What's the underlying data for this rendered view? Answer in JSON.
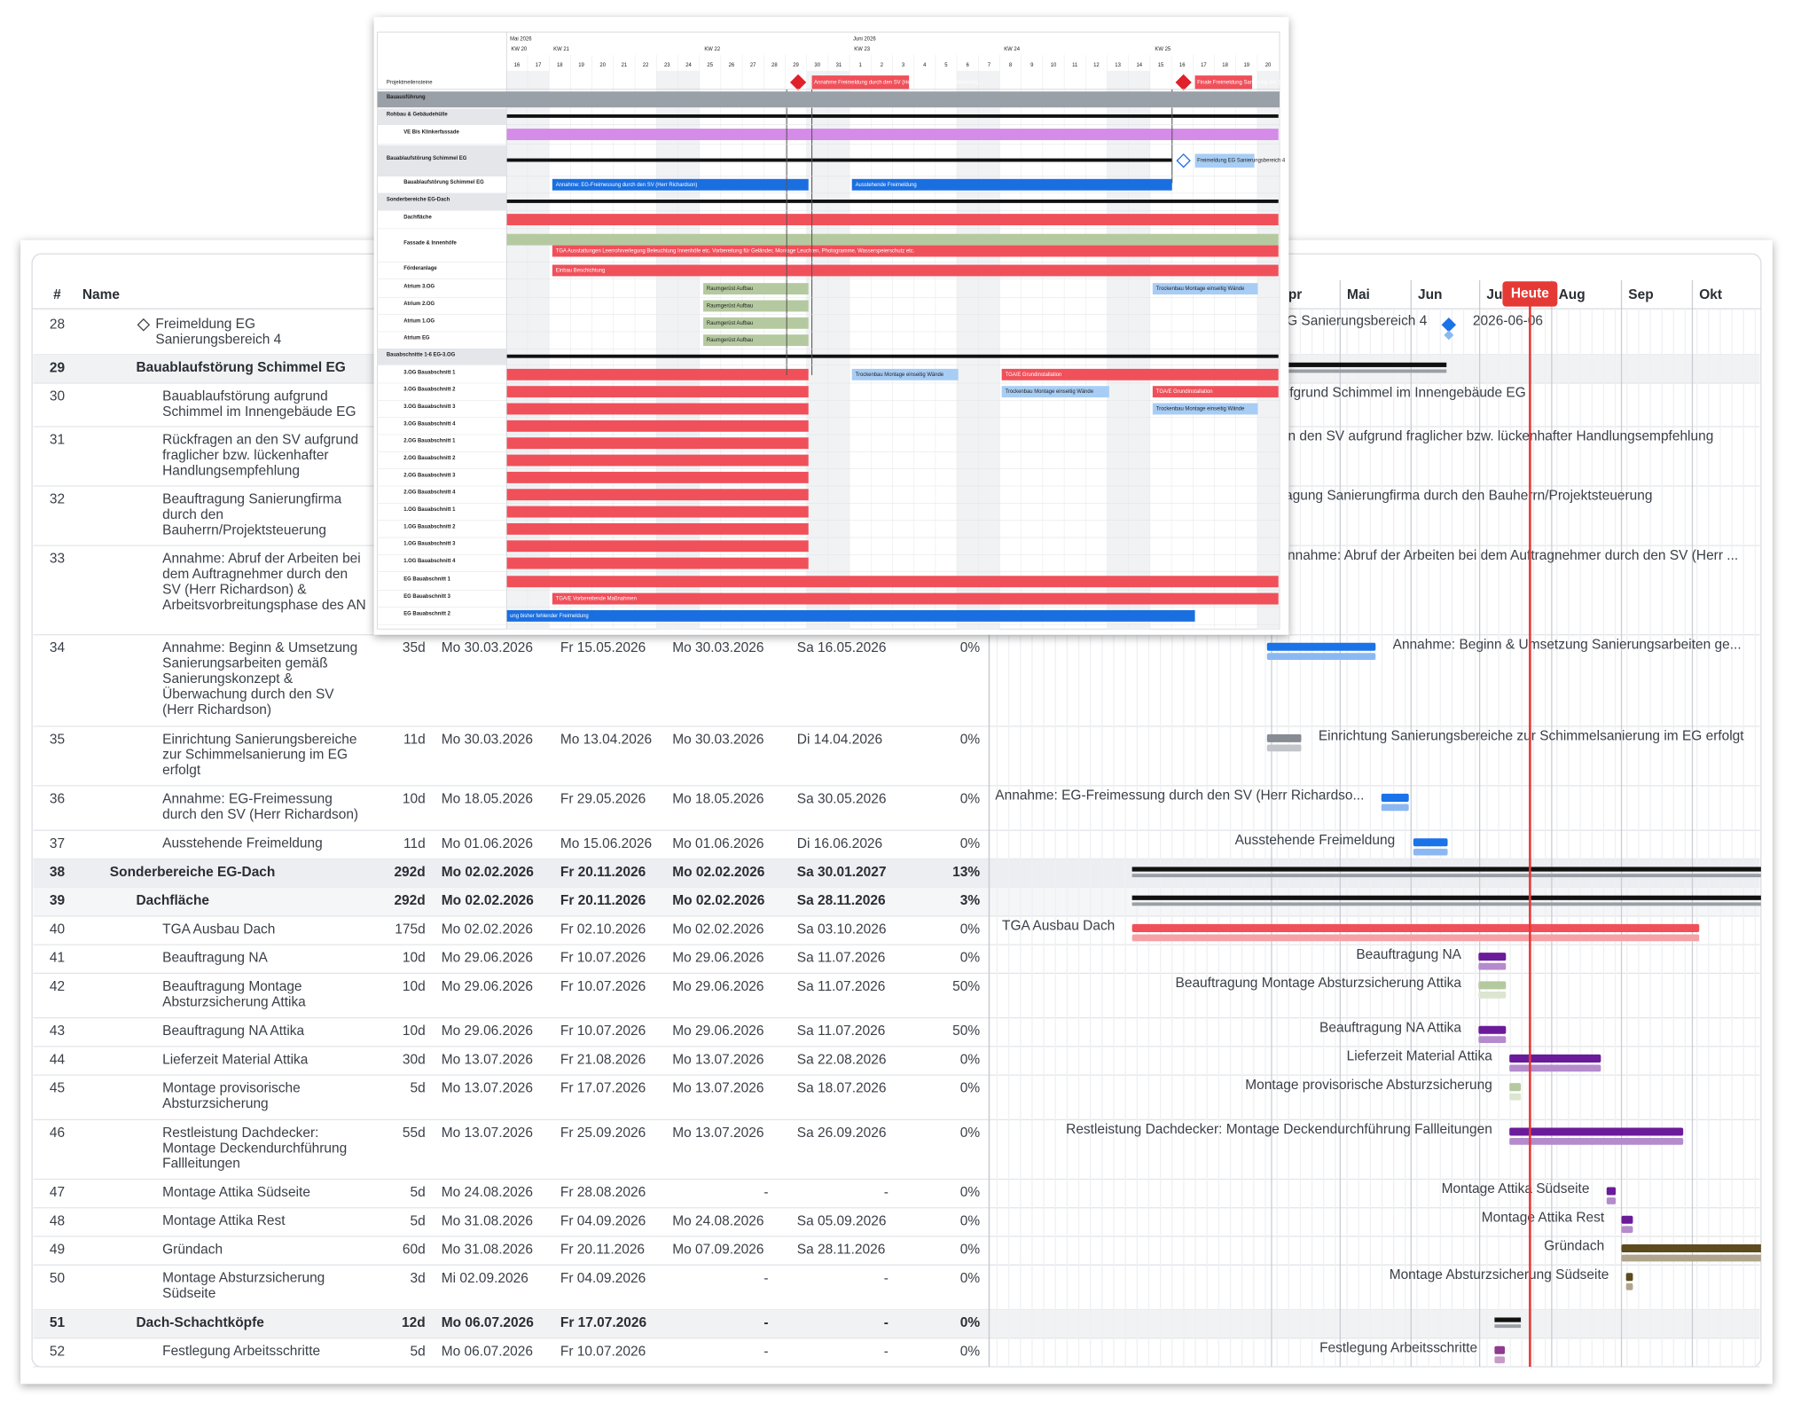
{
  "table": {
    "headers": [
      "#",
      "Name"
    ],
    "rows": [
      {
        "id": "28",
        "name": "Freimeldung EG Sanierungsbereich 4",
        "gantt_label": "Freimeldung EG Sanierungsbereich 4",
        "milestone_date": "2026-06-06"
      },
      {
        "id": "29",
        "name": "Bauablaufstörung Schimmel EG"
      },
      {
        "id": "30",
        "name": "Bauablaufstörung aufgrund Schimmel im Innengebäude EG",
        "gantt_label": "Bauablaufstörung aufgrund Schimmel im Innengebäude EG"
      },
      {
        "id": "31",
        "name": "Rückfragen an den SV aufgrund fraglicher bzw. lückenhafter Handlungsempfehlung",
        "gantt_label": "Rückfragen an den SV aufgrund fraglicher bzw. lückenhafter Handlungsempfehlung"
      },
      {
        "id": "32",
        "name": "Beauftragung Sanierungfirma durch den Bauherrn/Projektsteuerung",
        "gantt_label": "Beauftragung Sanierungfirma durch den Bauherrn/Projektsteuerung"
      },
      {
        "id": "33",
        "name": "Annahme: Abruf der Arbeiten bei dem Auftragnehmer durch den SV (Herr Richardson) & Arbeitsvorbreitungsphase des AN",
        "gantt_label": "Annahme: Abruf der Arbeiten bei dem Auftragnehmer durch den SV (Herr ..."
      },
      {
        "id": "34",
        "name": "Annahme: Beginn & Umsetzung Sanierungsarbeiten gemäß Sanierungskonzept & Überwachung durch den SV (Herr Richardson)",
        "duration": "35d",
        "start": "Mo 30.03.2026",
        "end": "Fr 15.05.2026",
        "baseline_start": "Mo 30.03.2026",
        "baseline_end": "Sa 16.05.2026",
        "progress": "0%",
        "gantt_label": "Annahme: Beginn & Umsetzung Sanierungsarbeiten ge..."
      },
      {
        "id": "35",
        "name": "Einrichtung Sanierungsbereiche zur Schimmelsanierung im EG erfolgt",
        "duration": "11d",
        "start": "Mo 30.03.2026",
        "end": "Mo 13.04.2026",
        "baseline_start": "Mo 30.03.2026",
        "baseline_end": "Di 14.04.2026",
        "progress": "0%",
        "gantt_label": "Einrichtung Sanierungsbereiche zur Schimmelsanierung im EG erfolgt"
      },
      {
        "id": "36",
        "name": "Annahme: EG-Freimessung durch den SV (Herr Richardson)",
        "duration": "10d",
        "start": "Mo 18.05.2026",
        "end": "Fr 29.05.2026",
        "baseline_start": "Mo 18.05.2026",
        "baseline_end": "Sa 30.05.2026",
        "progress": "0%",
        "gantt_label": "Annahme: EG-Freimessung durch den SV (Herr Richardso..."
      },
      {
        "id": "37",
        "name": "Ausstehende Freimeldung",
        "duration": "11d",
        "start": "Mo 01.06.2026",
        "end": "Mo 15.06.2026",
        "baseline_start": "Mo 01.06.2026",
        "baseline_end": "Di 16.06.2026",
        "progress": "0%",
        "gantt_label": "Ausstehende Freimeldung"
      },
      {
        "id": "38",
        "name": "Sonderbereiche EG-Dach",
        "duration": "292d",
        "start": "Mo 02.02.2026",
        "end": "Fr 20.11.2026",
        "baseline_start": "Mo 02.02.2026",
        "baseline_end": "Sa 30.01.2027",
        "progress": "13%"
      },
      {
        "id": "39",
        "name": "Dachfläche",
        "duration": "292d",
        "start": "Mo 02.02.2026",
        "end": "Fr 20.11.2026",
        "baseline_start": "Mo 02.02.2026",
        "baseline_end": "Sa 28.11.2026",
        "progress": "3%"
      },
      {
        "id": "40",
        "name": "TGA Ausbau Dach",
        "duration": "175d",
        "start": "Mo 02.02.2026",
        "end": "Fr 02.10.2026",
        "baseline_start": "Mo 02.02.2026",
        "baseline_end": "Sa 03.10.2026",
        "progress": "0%",
        "gantt_label": "TGA Ausbau Dach"
      },
      {
        "id": "41",
        "name": "Beauftragung NA",
        "duration": "10d",
        "start": "Mo 29.06.2026",
        "end": "Fr 10.07.2026",
        "baseline_start": "Mo 29.06.2026",
        "baseline_end": "Sa 11.07.2026",
        "progress": "0%",
        "gantt_label": "Beauftragung NA"
      },
      {
        "id": "42",
        "name": "Beauftragung Montage Absturzsicherung Attika",
        "duration": "10d",
        "start": "Mo 29.06.2026",
        "end": "Fr 10.07.2026",
        "baseline_start": "Mo 29.06.2026",
        "baseline_end": "Sa 11.07.2026",
        "progress": "50%",
        "gantt_label": "Beauftragung Montage Absturzsicherung Attika"
      },
      {
        "id": "43",
        "name": "Beauftragung NA Attika",
        "duration": "10d",
        "start": "Mo 29.06.2026",
        "end": "Fr 10.07.2026",
        "baseline_start": "Mo 29.06.2026",
        "baseline_end": "Sa 11.07.2026",
        "progress": "50%",
        "gantt_label": "Beauftragung NA Attika"
      },
      {
        "id": "44",
        "name": "Lieferzeit Material Attika",
        "duration": "30d",
        "start": "Mo 13.07.2026",
        "end": "Fr 21.08.2026",
        "baseline_start": "Mo 13.07.2026",
        "baseline_end": "Sa 22.08.2026",
        "progress": "0%",
        "gantt_label": "Lieferzeit Material Attika"
      },
      {
        "id": "45",
        "name": "Montage provisorische Absturzsicherung",
        "duration": "5d",
        "start": "Mo 13.07.2026",
        "end": "Fr 17.07.2026",
        "baseline_start": "Mo 13.07.2026",
        "baseline_end": "Sa 18.07.2026",
        "progress": "0%",
        "gantt_label": "Montage provisorische Absturzsicherung"
      },
      {
        "id": "46",
        "name": "Restleistung Dachdecker: Montage Deckendurchführung Fallleitungen",
        "duration": "55d",
        "start": "Mo 13.07.2026",
        "end": "Fr 25.09.2026",
        "baseline_start": "Mo 13.07.2026",
        "baseline_end": "Sa 26.09.2026",
        "progress": "0%",
        "gantt_label": "Restleistung Dachdecker: Montage Deckendurchführung Fallleitungen"
      },
      {
        "id": "47",
        "name": "Montage Attika Südseite",
        "duration": "5d",
        "start": "Mo 24.08.2026",
        "end": "Fr 28.08.2026",
        "baseline_start": "-",
        "baseline_end": "-",
        "progress": "0%",
        "gantt_label": "Montage Attika Südseite"
      },
      {
        "id": "48",
        "name": "Montage Attika Rest",
        "duration": "5d",
        "start": "Mo 31.08.2026",
        "end": "Fr 04.09.2026",
        "baseline_start": "Mo 24.08.2026",
        "baseline_end": "Sa 05.09.2026",
        "progress": "0%",
        "gantt_label": "Montage Attika Rest"
      },
      {
        "id": "49",
        "name": "Gründach",
        "duration": "60d",
        "start": "Mo 31.08.2026",
        "end": "Fr 20.11.2026",
        "baseline_start": "Mo 07.09.2026",
        "baseline_end": "Sa 28.11.2026",
        "progress": "0%",
        "gantt_label": "Gründach"
      },
      {
        "id": "50",
        "name": "Montage Absturzsicherung Südseite",
        "duration": "3d",
        "start": "Mi 02.09.2026",
        "end": "Fr 04.09.2026",
        "baseline_start": "-",
        "baseline_end": "-",
        "progress": "0%",
        "gantt_label": "Montage Absturzsicherung Südseite"
      },
      {
        "id": "51",
        "name": "Dach-Schachtköpfe",
        "duration": "12d",
        "start": "Mo 06.07.2026",
        "end": "Fr 17.07.2026",
        "baseline_start": "-",
        "baseline_end": "-",
        "progress": "0%"
      },
      {
        "id": "52",
        "name": "Festlegung Arbeitsschritte",
        "duration": "5d",
        "start": "Mo 06.07.2026",
        "end": "Fr 10.07.2026",
        "baseline_start": "-",
        "baseline_end": "-",
        "progress": "0%",
        "gantt_label": "Festlegung Arbeitsschritte"
      }
    ]
  },
  "timeline": {
    "months": [
      "Apr",
      "Mai",
      "Jun",
      "Jul",
      "Aug",
      "Sep",
      "Okt"
    ],
    "today": "Heute"
  },
  "overlay": {
    "months": [
      "Mai 2026",
      "Juni 2026"
    ],
    "weeks": [
      "KW 20",
      "KW 21",
      "KW 22",
      "KW 23",
      "KW 24",
      "KW 25"
    ],
    "days": [
      16,
      17,
      18,
      19,
      20,
      21,
      22,
      23,
      24,
      25,
      26,
      27,
      28,
      29,
      30,
      31,
      1,
      2,
      3,
      4,
      5,
      6,
      7,
      8,
      9,
      10,
      11,
      12,
      13,
      14,
      15,
      16,
      17,
      18,
      19,
      20
    ],
    "header_label": "Projektmeilensteine",
    "milestones": [
      "Annahme Freimeldung durch den SV (Herr Richardson) der Sanierung...",
      "Finale Freimeldung Sanierung der Sanier..."
    ],
    "rows": [
      {
        "label": "Bauausführung",
        "bars": []
      },
      {
        "label": "Rohbau & Gebäudehülle",
        "bars": []
      },
      {
        "label": "VE Bis Klinkerfassade",
        "bars": []
      },
      {
        "label": "Bauablaufstörung Schimmel EG",
        "bars": [
          "Freimeldung EG Sanierungsbereich 4"
        ]
      },
      {
        "label": "Bauablaufstörung Schimmel EG",
        "bars": [
          "Annahme: EG-Freimessung durch den SV (Herr Richardson)",
          "Ausstehende Freimeldung"
        ]
      },
      {
        "label": "Sonderbereiche EG-Dach",
        "bars": []
      },
      {
        "label": "Dachfläche",
        "bars": []
      },
      {
        "label": "Fassade & Innenhöfe",
        "bars": [
          "TGA Ausstattungen Leerrohrverlegung Beleuchtung Innenhöfe etc. Vorbereitung für Geländer, Montage Leuchten, Photogramme, Wasserspeierschutz etc."
        ]
      },
      {
        "label": "Förderanlage",
        "bars": [
          "Einbau Beschichtung"
        ]
      },
      {
        "label": "Atrium 3.OG",
        "bars": [
          "Raumgerüst Aufbau",
          "Trockenbau Montage einseitig Wände"
        ]
      },
      {
        "label": "Atrium 2.OG",
        "bars": [
          "Raumgerüst Aufbau"
        ]
      },
      {
        "label": "Atrium 1.OG",
        "bars": [
          "Raumgerüst Aufbau"
        ]
      },
      {
        "label": "Atrium EG",
        "bars": [
          "Raumgerüst Aufbau"
        ]
      },
      {
        "label": "Bauabschnitte 1-6 EG-3.OG",
        "bars": []
      },
      {
        "label": "3.OG Bauabschnitt 1",
        "bars": [
          "Trockenbau Montage einseitig Wände",
          "TGA/E Grundinstallation"
        ]
      },
      {
        "label": "3.OG Bauabschnitt 2",
        "bars": [
          "Trockenbau Montage einseitig Wände",
          "TGA/E Grundinstallation"
        ]
      },
      {
        "label": "3.OG Bauabschnitt 3",
        "bars": [
          "Trockenbau Montage einseitig Wände"
        ]
      },
      {
        "label": "3.OG Bauabschnitt 4",
        "bars": []
      },
      {
        "label": "2.OG Bauabschnitt 1",
        "bars": []
      },
      {
        "label": "2.OG Bauabschnitt 2",
        "bars": []
      },
      {
        "label": "2.OG Bauabschnitt 3",
        "bars": []
      },
      {
        "label": "2.OG Bauabschnitt 4",
        "bars": []
      },
      {
        "label": "1.OG Bauabschnitt 1",
        "bars": []
      },
      {
        "label": "1.OG Bauabschnitt 2",
        "bars": []
      },
      {
        "label": "1.OG Bauabschnitt 3",
        "bars": []
      },
      {
        "label": "1.OG Bauabschnitt 4",
        "bars": []
      },
      {
        "label": "EG Bauabschnitt 1",
        "bars": []
      },
      {
        "label": "EG Bauabschnitt 3",
        "bars": [
          "TGA/E Vorbereitende Maßnahmen"
        ]
      },
      {
        "label": "EG Bauabschnitt 2",
        "bars": [
          "ung bisher fehlender Freimeldung"
        ]
      }
    ]
  }
}
